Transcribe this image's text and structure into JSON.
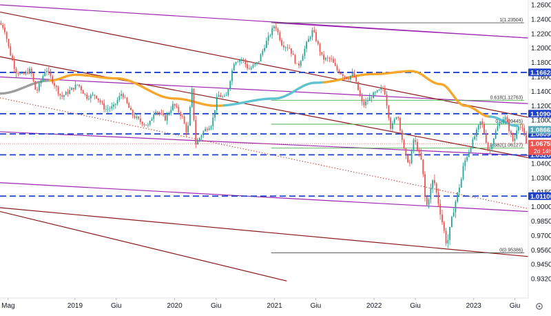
{
  "chart_data": {
    "type": "candlestick",
    "instrument_hint": "EUR/USD",
    "title": "",
    "xlabel": "",
    "ylabel": "",
    "x_range": [
      "2018-04-01",
      "2023-07-20"
    ],
    "ylim": [
      0.93,
      1.262
    ],
    "grid": false,
    "y_ticks": [
      1.26,
      1.24,
      1.22,
      1.2,
      1.18,
      1.16,
      1.14,
      1.12,
      1.1,
      1.08,
      1.06,
      1.04,
      1.03,
      1.015,
      1.0,
      0.985,
      0.97,
      0.956,
      0.945,
      0.932
    ],
    "y_tick_labels": [
      "1.26000",
      "1.24000",
      "1.22000",
      "1.20000",
      "1.18000",
      "1.16000",
      "1.14000",
      "1.12000",
      "1.10000",
      "1.08000",
      "1.06000",
      "1.04000",
      "1.03000",
      "1.01500",
      "1.00000",
      "0.98500",
      "0.97000",
      "0.95600",
      "0.94500",
      "0.93200"
    ],
    "x_ticks": [
      {
        "date": "2018-05-01",
        "label": "Mag"
      },
      {
        "date": "2019-01-01",
        "label": "2019"
      },
      {
        "date": "2019-06-01",
        "label": "Giu"
      },
      {
        "date": "2020-01-01",
        "label": "2020"
      },
      {
        "date": "2020-06-01",
        "label": "Giu"
      },
      {
        "date": "2021-01-01",
        "label": "2021"
      },
      {
        "date": "2021-06-01",
        "label": "Giu"
      },
      {
        "date": "2022-01-01",
        "label": "2022"
      },
      {
        "date": "2022-06-01",
        "label": "Giu"
      },
      {
        "date": "2023-01-01",
        "label": "2023"
      },
      {
        "date": "2023-06-01",
        "label": "Giu"
      }
    ],
    "candle_colors": {
      "up": "#26a69a",
      "down": "#ef5350"
    },
    "price_path": [
      [
        "2018-04-01",
        1.235
      ],
      [
        "2018-04-20",
        1.228
      ],
      [
        "2018-05-10",
        1.195
      ],
      [
        "2018-06-01",
        1.168
      ],
      [
        "2018-06-25",
        1.162
      ],
      [
        "2018-07-25",
        1.17
      ],
      [
        "2018-08-15",
        1.138
      ],
      [
        "2018-09-20",
        1.172
      ],
      [
        "2018-10-20",
        1.15
      ],
      [
        "2018-11-15",
        1.132
      ],
      [
        "2018-12-20",
        1.142
      ],
      [
        "2019-01-15",
        1.15
      ],
      [
        "2019-02-15",
        1.132
      ],
      [
        "2019-03-20",
        1.135
      ],
      [
        "2019-04-25",
        1.115
      ],
      [
        "2019-05-25",
        1.118
      ],
      [
        "2019-06-25",
        1.138
      ],
      [
        "2019-08-01",
        1.108
      ],
      [
        "2019-09-01",
        1.098
      ],
      [
        "2019-10-01",
        1.092
      ],
      [
        "2019-10-25",
        1.115
      ],
      [
        "2019-12-01",
        1.102
      ],
      [
        "2019-12-31",
        1.122
      ],
      [
        "2020-02-01",
        1.105
      ],
      [
        "2020-02-20",
        1.08
      ],
      [
        "2020-03-09",
        1.145
      ],
      [
        "2020-03-20",
        1.066
      ],
      [
        "2020-04-20",
        1.085
      ],
      [
        "2020-05-20",
        1.095
      ],
      [
        "2020-06-10",
        1.135
      ],
      [
        "2020-07-10",
        1.13
      ],
      [
        "2020-08-10",
        1.182
      ],
      [
        "2020-09-10",
        1.185
      ],
      [
        "2020-10-01",
        1.17
      ],
      [
        "2020-11-05",
        1.18
      ],
      [
        "2020-12-01",
        1.205
      ],
      [
        "2021-01-06",
        1.233
      ],
      [
        "2021-02-01",
        1.205
      ],
      [
        "2021-03-01",
        1.2
      ],
      [
        "2021-03-31",
        1.173
      ],
      [
        "2021-05-01",
        1.205
      ],
      [
        "2021-05-25",
        1.225
      ],
      [
        "2021-06-30",
        1.185
      ],
      [
        "2021-07-30",
        1.185
      ],
      [
        "2021-08-20",
        1.17
      ],
      [
        "2021-09-30",
        1.158
      ],
      [
        "2021-10-20",
        1.165
      ],
      [
        "2021-11-24",
        1.12
      ],
      [
        "2021-12-31",
        1.135
      ],
      [
        "2022-02-10",
        1.145
      ],
      [
        "2022-03-07",
        1.088
      ],
      [
        "2022-03-31",
        1.11
      ],
      [
        "2022-04-28",
        1.05
      ],
      [
        "2022-05-15",
        1.04
      ],
      [
        "2022-05-30",
        1.075
      ],
      [
        "2022-06-30",
        1.04
      ],
      [
        "2022-07-14",
        0.998
      ],
      [
        "2022-08-10",
        1.03
      ],
      [
        "2022-09-28",
        0.96
      ],
      [
        "2022-10-25",
        1.0
      ],
      [
        "2022-11-30",
        1.04
      ],
      [
        "2022-12-31",
        1.07
      ],
      [
        "2023-02-01",
        1.1
      ],
      [
        "2023-03-01",
        1.055
      ],
      [
        "2023-03-31",
        1.09
      ],
      [
        "2023-04-28",
        1.105
      ],
      [
        "2023-05-31",
        1.068
      ],
      [
        "2023-06-15",
        1.095
      ],
      [
        "2023-07-05",
        1.085
      ],
      [
        "2023-07-14",
        1.0675
      ]
    ],
    "moving_average": [
      [
        "2018-04-01",
        1.137
      ],
      [
        "2018-10-01",
        1.155
      ],
      [
        "2019-01-01",
        1.163
      ],
      [
        "2019-06-01",
        1.158
      ],
      [
        "2020-01-01",
        1.13
      ],
      [
        "2020-06-01",
        1.12
      ],
      [
        "2021-01-01",
        1.13
      ],
      [
        "2021-06-01",
        1.152
      ],
      [
        "2022-01-01",
        1.164
      ],
      [
        "2022-05-20",
        1.168
      ],
      [
        "2022-09-01",
        1.15
      ],
      [
        "2022-12-01",
        1.12
      ],
      [
        "2023-03-01",
        1.105
      ],
      [
        "2023-06-10",
        1.092
      ]
    ],
    "ma_segment_colors": [
      {
        "from": "2018-04-01",
        "to": "2018-10-01",
        "color": "#9e9e9e"
      },
      {
        "from": "2018-10-01",
        "to": "2020-01-01",
        "color": "#f7a62c"
      },
      {
        "from": "2020-01-01",
        "to": "2020-07-01",
        "color": "#f7a62c"
      },
      {
        "from": "2020-07-01",
        "to": "2021-07-01",
        "color": "#5ec2cf"
      },
      {
        "from": "2021-07-01",
        "to": "2022-09-01",
        "color": "#f7a62c"
      },
      {
        "from": "2022-09-01",
        "to": "2023-03-01",
        "color": "#f7a62c"
      },
      {
        "from": "2023-03-01",
        "to": "2023-06-10",
        "color": "#5ec2cf"
      }
    ],
    "horizontal_levels": [
      {
        "value": 1.16628,
        "label": "1.16628",
        "color": "#1e40c8",
        "style": "dashed"
      },
      {
        "value": 1.109,
        "label": "1.10900",
        "color": "#1e40c8",
        "style": "dashed"
      },
      {
        "value": 1.0809,
        "label": "1.08090",
        "color": "#1e40c8",
        "style": "dashed"
      },
      {
        "value": 1.052,
        "label": "1.05200",
        "color": "#1e40c8",
        "style": "dashed"
      },
      {
        "value": 1.011,
        "label": "1.01100",
        "color": "#1e40c8",
        "style": "dashed"
      }
    ],
    "price_tags": [
      {
        "value": 1.08663,
        "label": "1.08663",
        "color": "#5aaabf"
      },
      {
        "value": 1.0675,
        "label": "1.06755",
        "sublabel": "2d 14h",
        "color": "#ef5350"
      }
    ],
    "current_price": 1.0675,
    "fibonacci": {
      "from_date": "2020-12-20",
      "to_date": "2023-07-05",
      "color": "#4caf50",
      "levels": [
        {
          "ratio": 1,
          "value": 1.23504,
          "label": "1(1.23504)"
        },
        {
          "ratio": 0.618,
          "value": 1.12763,
          "label": "0.618(1.12763)"
        },
        {
          "ratio": 0.5,
          "value": 1.09445,
          "label": "0.5(1.09445)"
        },
        {
          "ratio": 0.382,
          "value": 1.06127,
          "label": "0.382(1.06127)"
        },
        {
          "ratio": 0,
          "value": 0.95386,
          "label": "0(0.95386)"
        }
      ]
    },
    "trendlines": [
      {
        "color": "#9c27b0",
        "points": [
          [
            "2018-04-01",
            1.26
          ],
          [
            "2023-07-20",
            1.214
          ]
        ]
      },
      {
        "color": "#9c27b0",
        "points": [
          [
            "2021-01-01",
            1.235
          ],
          [
            "2023-07-20",
            1.214
          ]
        ]
      },
      {
        "color": "#9c27b0",
        "points": [
          [
            "2018-04-01",
            1.16
          ],
          [
            "2023-07-20",
            1.123
          ]
        ]
      },
      {
        "color": "#9c27b0",
        "points": [
          [
            "2018-04-01",
            1.084
          ],
          [
            "2023-07-20",
            1.051
          ]
        ]
      },
      {
        "color": "#9c27b0",
        "points": [
          [
            "2018-04-01",
            1.025
          ],
          [
            "2023-07-20",
            0.995
          ]
        ]
      },
      {
        "color": "#8b1a1a",
        "points": [
          [
            "2018-04-01",
            1.25
          ],
          [
            "2023-07-20",
            1.104
          ]
        ]
      },
      {
        "color": "#8b1a1a",
        "points": [
          [
            "2018-04-01",
            1.188
          ],
          [
            "2023-07-20",
            1.048
          ]
        ]
      },
      {
        "color": "#8b1a1a",
        "points": [
          [
            "2018-04-01",
            0.999
          ],
          [
            "2023-07-20",
            0.951
          ]
        ]
      },
      {
        "color": "#8b1a1a",
        "points": [
          [
            "2018-04-01",
            0.995
          ],
          [
            "2021-02-15",
            0.93
          ]
        ]
      }
    ],
    "dotted_trendline": {
      "color": "#c0392b",
      "points": [
        [
          "2018-04-01",
          1.131
        ],
        [
          "2023-07-20",
          0.998
        ]
      ]
    },
    "settings_icon": "gear-icon"
  }
}
